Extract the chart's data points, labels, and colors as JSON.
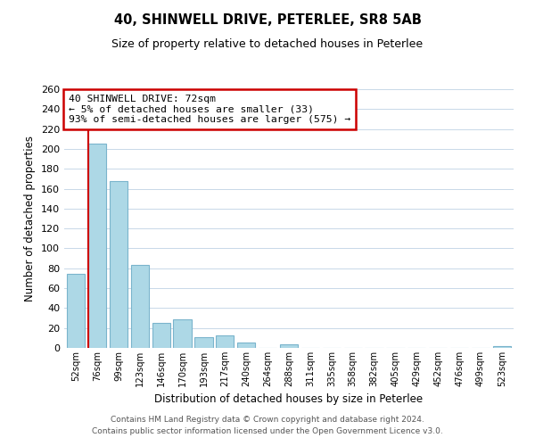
{
  "title": "40, SHINWELL DRIVE, PETERLEE, SR8 5AB",
  "subtitle": "Size of property relative to detached houses in Peterlee",
  "xlabel": "Distribution of detached houses by size in Peterlee",
  "ylabel": "Number of detached properties",
  "bar_labels": [
    "52sqm",
    "76sqm",
    "99sqm",
    "123sqm",
    "146sqm",
    "170sqm",
    "193sqm",
    "217sqm",
    "240sqm",
    "264sqm",
    "288sqm",
    "311sqm",
    "335sqm",
    "358sqm",
    "382sqm",
    "405sqm",
    "429sqm",
    "452sqm",
    "476sqm",
    "499sqm",
    "523sqm"
  ],
  "bar_values": [
    74,
    205,
    168,
    83,
    25,
    29,
    11,
    13,
    5,
    0,
    4,
    0,
    0,
    0,
    0,
    0,
    0,
    0,
    0,
    0,
    2
  ],
  "bar_color": "#add8e6",
  "bar_edge_color": "#7ab4cc",
  "highlight_color": "#cc0000",
  "ylim": [
    0,
    260
  ],
  "yticks": [
    0,
    20,
    40,
    60,
    80,
    100,
    120,
    140,
    160,
    180,
    200,
    220,
    240,
    260
  ],
  "annotation_title": "40 SHINWELL DRIVE: 72sqm",
  "annotation_line1": "← 5% of detached houses are smaller (33)",
  "annotation_line2": "93% of semi-detached houses are larger (575) →",
  "annotation_box_color": "#ffffff",
  "annotation_box_edge": "#cc0000",
  "footer_line1": "Contains HM Land Registry data © Crown copyright and database right 2024.",
  "footer_line2": "Contains public sector information licensed under the Open Government Licence v3.0.",
  "bg_color": "#ffffff",
  "grid_color": "#c8d8e8"
}
